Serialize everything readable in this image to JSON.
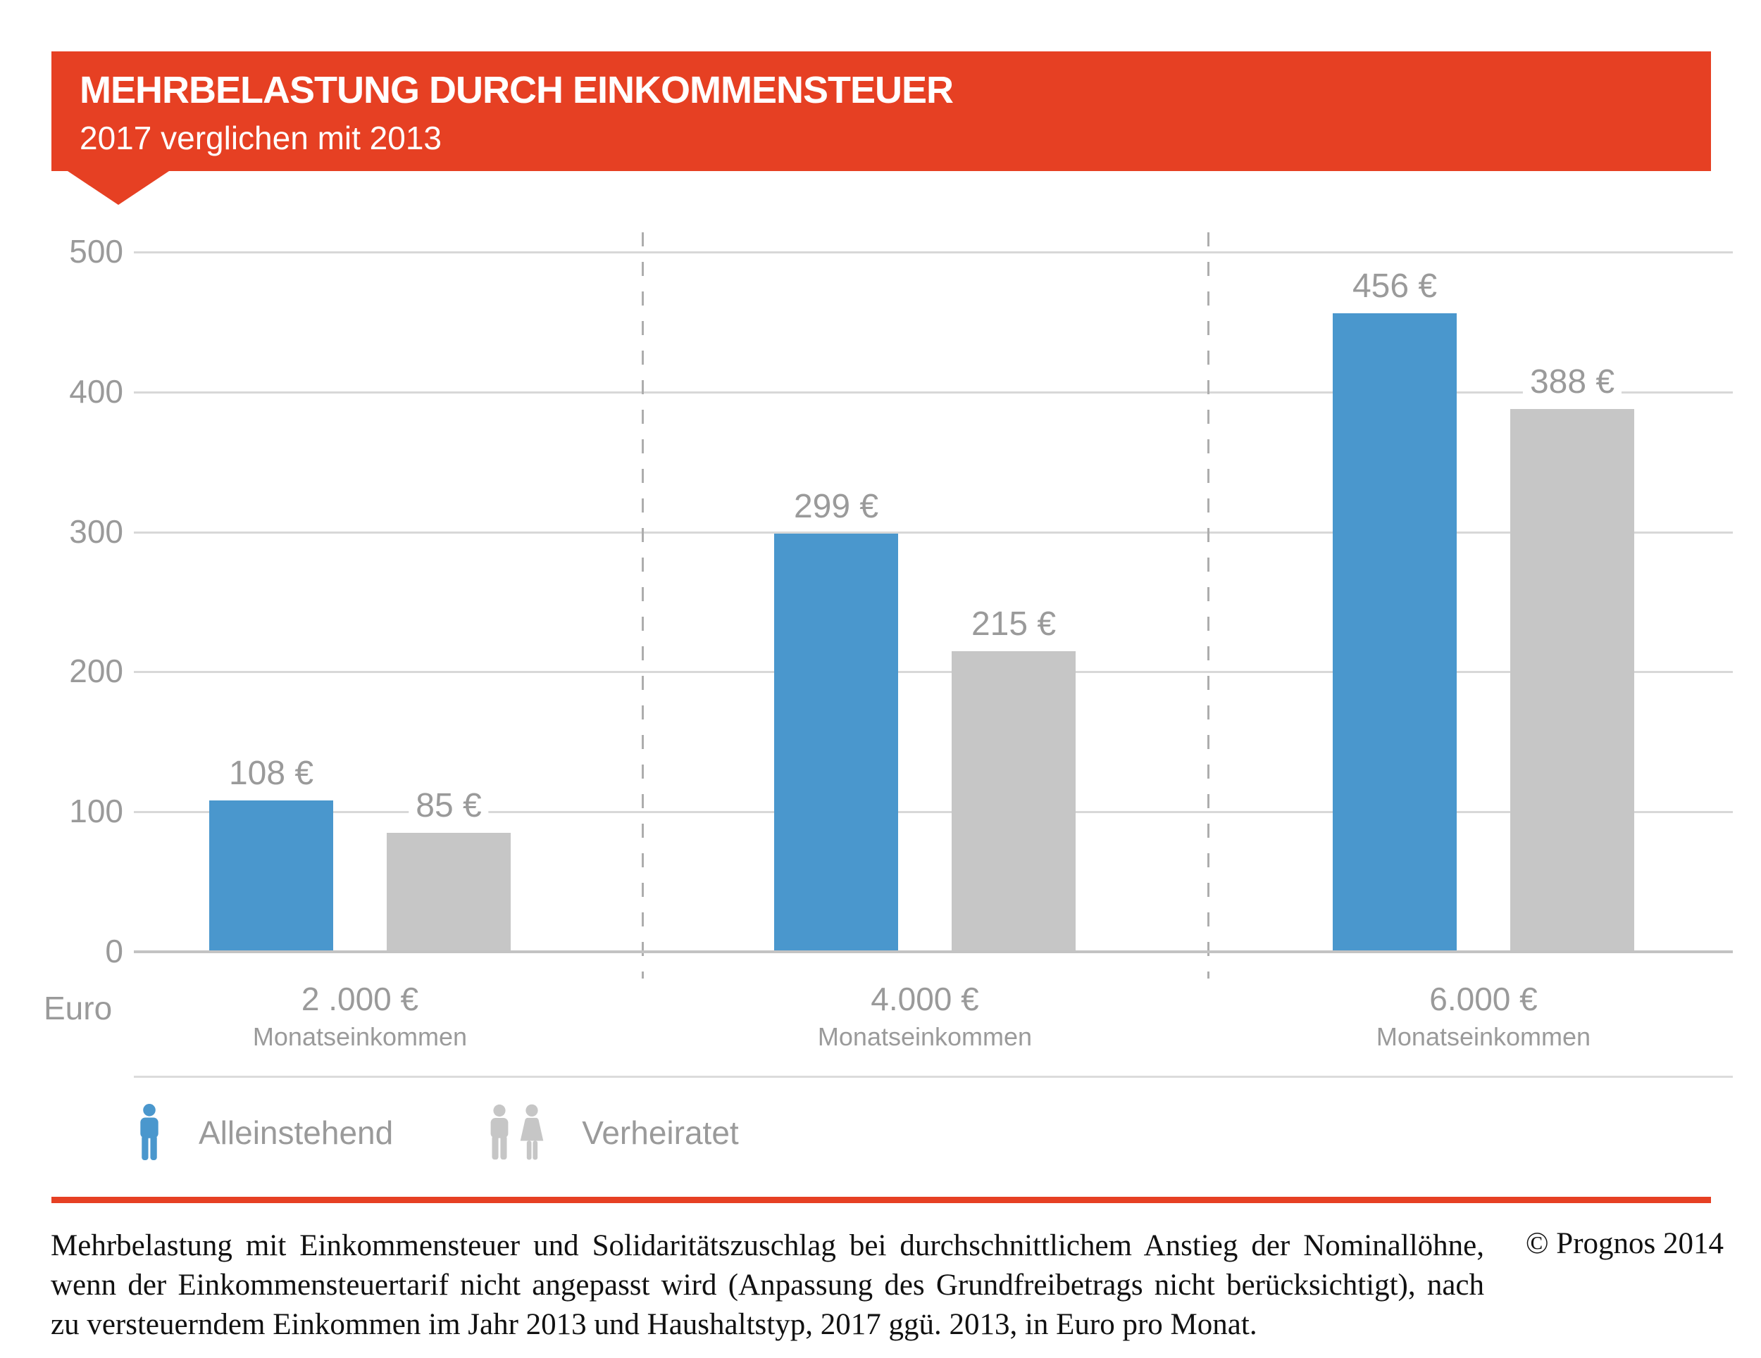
{
  "header": {
    "title": "MEHRBELASTUNG DURCH EINKOMMENSTEUER",
    "subtitle": "2017 verglichen mit 2013"
  },
  "chart_data": {
    "type": "bar",
    "title": "Mehrbelastung durch Einkommensteuer – 2017 verglichen mit 2013",
    "unit_label": "Euro",
    "categories": [
      "2 .000 €",
      "4.000 €",
      "6.000 €"
    ],
    "category_sublabel": "Monatseinkommen",
    "series": [
      {
        "name": "Alleinstehend",
        "color": "#4a97cd",
        "values": [
          108,
          299,
          456
        ],
        "labels": [
          "108 €",
          "299 €",
          "456 €"
        ]
      },
      {
        "name": "Verheiratet",
        "color": "#c6c6c6",
        "values": [
          85,
          215,
          388
        ],
        "labels": [
          "85 €",
          "215 €",
          "388 €"
        ]
      }
    ],
    "y_ticks": [
      0,
      100,
      200,
      300,
      400,
      500
    ],
    "ylim": [
      0,
      500
    ],
    "grid": true,
    "legend_position": "bottom"
  },
  "legend": {
    "items": [
      {
        "label": "Alleinstehend",
        "icon": "single-person-icon",
        "color": "#4a97cd"
      },
      {
        "label": "Verheiratet",
        "icon": "married-couple-icon",
        "color": "#c6c6c6"
      }
    ]
  },
  "footer": {
    "lines": [
      "Mehrbelastung mit Einkommensteuer und Solidaritätszuschlag bei durchschnittlichem Anstieg der Nominallöhne,",
      "wenn der Einkommensteuertarif nicht angepasst wird (Anpassung des Grundfreibetrags nicht berücksichtigt), nach",
      "zu versteuerndem Einkommen im Jahr 2013 und Haushaltstyp, 2017 ggü. 2013, in Euro pro Monat."
    ],
    "copyright": "© Prognos 2014"
  },
  "colors": {
    "accent_red": "#e64023",
    "bar_blue": "#4a97cd",
    "bar_gray": "#c6c6c6",
    "label_gray": "#9a9a9a",
    "grid_gray": "#d8d8d8"
  }
}
